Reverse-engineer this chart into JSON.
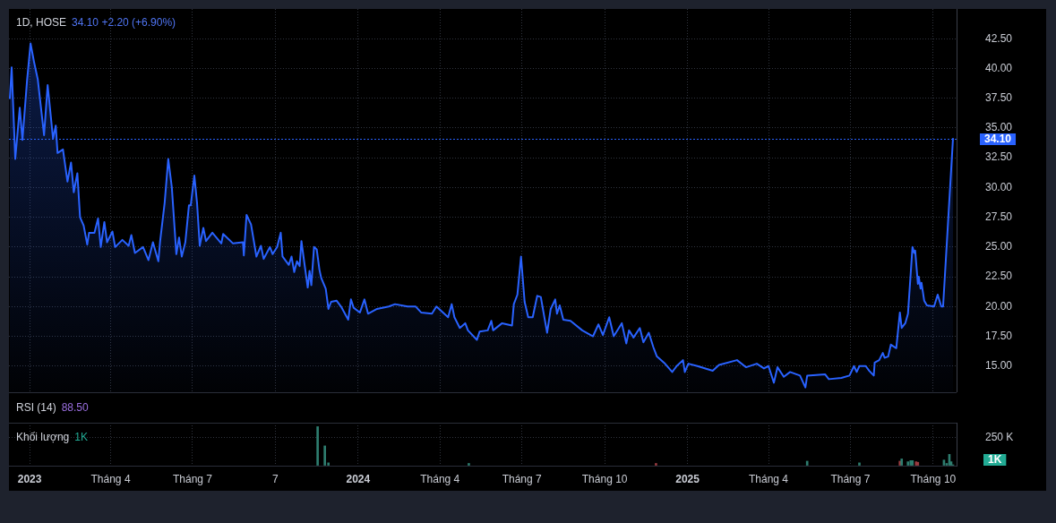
{
  "chart_data": [
    {
      "type": "area",
      "title": "1D, HOSE",
      "subtitle": "34.10 +2.20 (+6.90%)",
      "x": [
        "2022-12-10",
        "2022-12-12",
        "2022-12-16",
        "2022-12-21",
        "2022-12-24",
        "2022-12-29",
        "2023-01-02",
        "2023-01-06",
        "2023-01-10",
        "2023-01-17",
        "2023-01-21",
        "2023-01-27",
        "2023-01-30",
        "2023-02-01",
        "2023-02-07",
        "2023-02-12",
        "2023-02-16",
        "2023-02-19",
        "2023-02-23",
        "2023-02-26",
        "2023-03-02",
        "2023-03-06",
        "2023-03-08",
        "2023-03-14",
        "2023-03-18",
        "2023-03-21",
        "2023-03-25",
        "2023-03-28",
        "2023-04-03",
        "2023-04-06",
        "2023-04-14",
        "2023-04-21",
        "2023-04-24",
        "2023-04-28",
        "2023-05-07",
        "2023-05-13",
        "2023-05-18",
        "2023-05-24",
        "2023-05-26",
        "2023-05-31",
        "2023-06-04",
        "2023-06-08",
        "2023-06-13",
        "2023-06-16",
        "2023-06-19",
        "2023-06-23",
        "2023-06-27",
        "2023-06-29",
        "2023-07-03",
        "2023-07-06",
        "2023-07-09",
        "2023-07-13",
        "2023-07-16",
        "2023-07-23",
        "2023-08-02",
        "2023-08-04",
        "2023-08-15",
        "2023-08-26",
        "2023-08-27",
        "2023-08-30",
        "2023-09-04",
        "2023-09-10",
        "2023-09-15",
        "2023-09-18",
        "2023-09-25",
        "2023-09-28",
        "2023-10-03",
        "2023-10-07",
        "2023-10-09",
        "2023-10-16",
        "2023-10-19",
        "2023-10-22",
        "2023-10-25",
        "2023-10-28",
        "2023-10-30",
        "2023-11-02",
        "2023-11-06",
        "2023-11-08",
        "2023-11-10",
        "2023-11-13",
        "2023-11-16",
        "2023-11-19",
        "2023-11-21",
        "2023-11-26",
        "2023-11-29",
        "2023-12-02",
        "2023-12-08",
        "2023-12-13",
        "2023-12-21",
        "2023-12-24",
        "2023-12-27",
        "2024-01-03",
        "2024-01-08",
        "2024-01-12",
        "2024-01-22",
        "2024-02-04",
        "2024-02-11",
        "2024-02-25",
        "2024-03-05",
        "2024-03-11",
        "2024-03-23",
        "2024-03-28",
        "2024-04-10",
        "2024-04-14",
        "2024-04-17",
        "2024-04-23",
        "2024-04-29",
        "2024-05-02",
        "2024-05-12",
        "2024-05-15",
        "2024-05-24",
        "2024-05-28",
        "2024-05-30",
        "2024-06-09",
        "2024-06-20",
        "2024-06-22",
        "2024-06-26",
        "2024-06-30",
        "2024-07-04",
        "2024-07-08",
        "2024-07-13",
        "2024-07-18",
        "2024-07-22",
        "2024-07-25",
        "2024-07-29",
        "2024-08-02",
        "2024-08-07",
        "2024-08-09",
        "2024-08-12",
        "2024-08-16",
        "2024-08-24",
        "2024-09-06",
        "2024-09-18",
        "2024-09-24",
        "2024-09-29",
        "2024-10-06",
        "2024-10-11",
        "2024-10-20",
        "2024-10-25",
        "2024-10-28",
        "2024-11-02",
        "2024-11-09",
        "2024-11-13",
        "2024-11-19",
        "2024-11-24",
        "2024-11-28",
        "2024-12-07",
        "2024-12-15",
        "2024-12-20",
        "2024-12-27",
        "2024-12-29",
        "2025-01-02",
        "2025-01-12",
        "2025-01-29",
        "2025-02-05",
        "2025-02-25",
        "2025-03-07",
        "2025-03-19",
        "2025-03-27",
        "2025-04-01",
        "2025-04-07",
        "2025-04-11",
        "2025-04-18",
        "2025-04-25",
        "2025-05-06",
        "2025-05-12",
        "2025-05-14",
        "2025-06-03",
        "2025-06-07",
        "2025-06-21",
        "2025-06-30",
        "2025-07-05",
        "2025-07-08",
        "2025-07-11",
        "2025-07-18",
        "2025-07-22",
        "2025-07-27",
        "2025-07-28",
        "2025-08-02",
        "2025-08-06",
        "2025-08-08",
        "2025-08-12",
        "2025-08-15",
        "2025-08-21",
        "2025-08-25",
        "2025-08-27",
        "2025-08-31",
        "2025-09-03",
        "2025-09-08",
        "2025-09-10",
        "2025-09-11",
        "2025-09-14",
        "2025-09-15",
        "2025-09-17",
        "2025-09-18",
        "2025-09-21",
        "2025-09-24",
        "2025-10-02",
        "2025-10-06",
        "2025-10-08",
        "2025-10-10",
        "2025-10-12",
        "2025-10-23"
      ],
      "values": [
        37.5,
        40.1,
        32.4,
        36.7,
        34.0,
        38.9,
        42.1,
        40.5,
        39.1,
        34.4,
        38.6,
        34.1,
        35.2,
        32.9,
        33.2,
        30.5,
        32.1,
        29.6,
        31.2,
        27.5,
        26.8,
        25.2,
        26.2,
        26.2,
        27.4,
        25.0,
        27.1,
        25.4,
        26.3,
        25.0,
        25.6,
        25.1,
        26.0,
        24.5,
        25.0,
        23.9,
        25.4,
        23.8,
        25.5,
        28.7,
        32.4,
        30.0,
        24.4,
        25.8,
        24.2,
        25.4,
        28.5,
        28.5,
        31.0,
        28.7,
        25.1,
        26.6,
        25.5,
        26.2,
        25.3,
        26.1,
        25.3,
        25.4,
        24.3,
        27.7,
        26.9,
        24.2,
        25.1,
        24.0,
        25.0,
        24.4,
        25.0,
        26.2,
        24.2,
        23.5,
        24.2,
        22.9,
        23.8,
        23.4,
        25.5,
        23.8,
        21.6,
        23.0,
        21.8,
        25.0,
        24.8,
        23.1,
        22.4,
        21.5,
        19.8,
        20.4,
        20.5,
        20.0,
        18.9,
        20.6,
        19.9,
        19.5,
        20.6,
        19.4,
        19.8,
        20.0,
        20.2,
        20.0,
        20.0,
        19.5,
        19.4,
        20.0,
        19.1,
        20.2,
        19.1,
        18.2,
        18.6,
        18.0,
        17.2,
        17.9,
        18.0,
        18.8,
        18.0,
        18.6,
        18.4,
        20.2,
        21.0,
        24.2,
        20.4,
        19.1,
        19.1,
        20.9,
        20.8,
        19.5,
        17.8,
        19.8,
        20.6,
        19.4,
        20.1,
        18.9,
        18.8,
        18.0,
        17.5,
        18.5,
        17.6,
        19.1,
        17.5,
        18.6,
        16.9,
        18.0,
        17.4,
        18.2,
        17.0,
        17.8,
        16.6,
        15.8,
        15.2,
        14.5,
        15.0,
        15.5,
        14.5,
        15.2,
        15.0,
        14.6,
        15.1,
        15.5,
        14.9,
        15.2,
        14.8,
        15.0,
        13.6,
        14.9,
        14.1,
        14.5,
        14.2,
        13.2,
        14.2,
        14.3,
        13.9,
        14.0,
        14.2,
        15.0,
        14.5,
        15.0,
        15.0,
        14.6,
        14.2,
        15.3,
        15.5,
        16.1,
        15.7,
        15.8,
        16.8,
        16.5,
        19.5,
        18.2,
        18.6,
        19.4,
        25.0,
        24.5,
        24.7,
        21.9,
        22.5,
        21.5,
        22.0,
        20.5,
        20.1,
        20.0,
        21.0,
        20.5,
        20.0,
        20.0,
        34.1
      ],
      "color": "#2962ff",
      "xlim": [
        "2022-12-09",
        "2025-10-27"
      ],
      "xticks": [
        {
          "value": "2023-01-01",
          "label": null
        },
        {
          "value": "2023-04-01",
          "label": null
        },
        {
          "value": "2023-07-01",
          "label": null
        },
        {
          "value": "2023-10-01",
          "label": null
        },
        {
          "value": "2024-01-01",
          "label": null
        },
        {
          "value": "2024-04-01",
          "label": null
        },
        {
          "value": "2024-07-01",
          "label": null
        },
        {
          "value": "2024-10-01",
          "label": null
        },
        {
          "value": "2025-01-01",
          "label": null
        },
        {
          "value": "2025-04-01",
          "label": null
        },
        {
          "value": "2025-07-01",
          "label": null
        },
        {
          "value": "2025-10-01",
          "label": null
        }
      ],
      "ylim": [
        12.8,
        45
      ],
      "yticks": [
        {
          "value": 15,
          "label": "15.00"
        },
        {
          "value": 17.5,
          "label": "17.50"
        },
        {
          "value": 20,
          "label": "20.00"
        },
        {
          "value": 22.5,
          "label": "22.50"
        },
        {
          "value": 25,
          "label": "25.00"
        },
        {
          "value": 27.5,
          "label": "27.50"
        },
        {
          "value": 30,
          "label": "30.00"
        },
        {
          "value": 32.5,
          "label": "32.50"
        },
        {
          "value": 35,
          "label": "35.00"
        },
        {
          "value": 37.5,
          "label": "37.50"
        },
        {
          "value": 40,
          "label": "40.00"
        },
        {
          "value": 42.5,
          "label": "42.50"
        }
      ],
      "grid": true,
      "tick_labels": "y",
      "ref_lines": [
        {
          "axis": "y",
          "value": 34.1,
          "label": "34.10",
          "color": "#2962ff",
          "line_style": "dotted"
        }
      ]
    },
    {
      "type": "other",
      "title": "RSI (14)",
      "annotations": [
        "88.50"
      ]
    },
    {
      "type": "bar",
      "title": "Khối lượng",
      "annotations": [
        "1K",
        "1K"
      ],
      "x": [
        "2023-11-17",
        "2023-11-25",
        "2023-11-29",
        "2024-05-03",
        "2024-11-27",
        "2025-05-14",
        "2025-07-11",
        "2025-08-25",
        "2025-08-27",
        "2025-09-03",
        "2025-09-06",
        "2025-09-08",
        "2025-09-12",
        "2025-09-14",
        "2025-10-13",
        "2025-10-16",
        "2025-10-19",
        "2025-10-21",
        "2025-10-23"
      ],
      "values": [
        345000,
        175000,
        25000,
        20000,
        20000,
        40000,
        25000,
        40000,
        60000,
        35000,
        45000,
        45000,
        35000,
        30000,
        50000,
        20000,
        100000,
        35000,
        1000
      ],
      "colors": [
        "#2e7d6f",
        "#2e7d6f",
        "#2e7d6f",
        "#2e7d6f",
        "#9a3b40",
        "#2e7d6f",
        "#2e7d6f",
        "#9a3b40",
        "#2e7d6f",
        "#2e7d6f",
        "#2e7d6f",
        "#2e7d6f",
        "#9a3b40",
        "#9a3b40",
        "#2e7d6f",
        "#2e7d6f",
        "#2e7d6f",
        "#2e7d6f",
        "#2e7d6f"
      ],
      "xlim": [
        "2022-12-09",
        "2025-10-27"
      ],
      "xticks": [
        {
          "value": "2023-01-01",
          "label": "2023"
        },
        {
          "value": "2023-04-01",
          "label": "Tháng 4"
        },
        {
          "value": "2023-07-01",
          "label": "Tháng 7"
        },
        {
          "value": "2023-10-01",
          "label": "7"
        },
        {
          "value": "2024-01-01",
          "label": "2024"
        },
        {
          "value": "2024-04-01",
          "label": "Tháng 4"
        },
        {
          "value": "2024-07-01",
          "label": "Tháng 7"
        },
        {
          "value": "2024-10-01",
          "label": "Tháng 10"
        },
        {
          "value": "2025-01-01",
          "label": "2025"
        },
        {
          "value": "2025-04-01",
          "label": "Tháng 4"
        },
        {
          "value": "2025-07-01",
          "label": "Tháng 7"
        },
        {
          "value": "2025-10-01",
          "label": "Tháng 10"
        }
      ],
      "ylim": [
        0,
        380000
      ],
      "yticks": [
        {
          "value": 0,
          "label": null
        },
        {
          "value": 250000,
          "label": "250 K"
        }
      ],
      "grid": true
    }
  ]
}
